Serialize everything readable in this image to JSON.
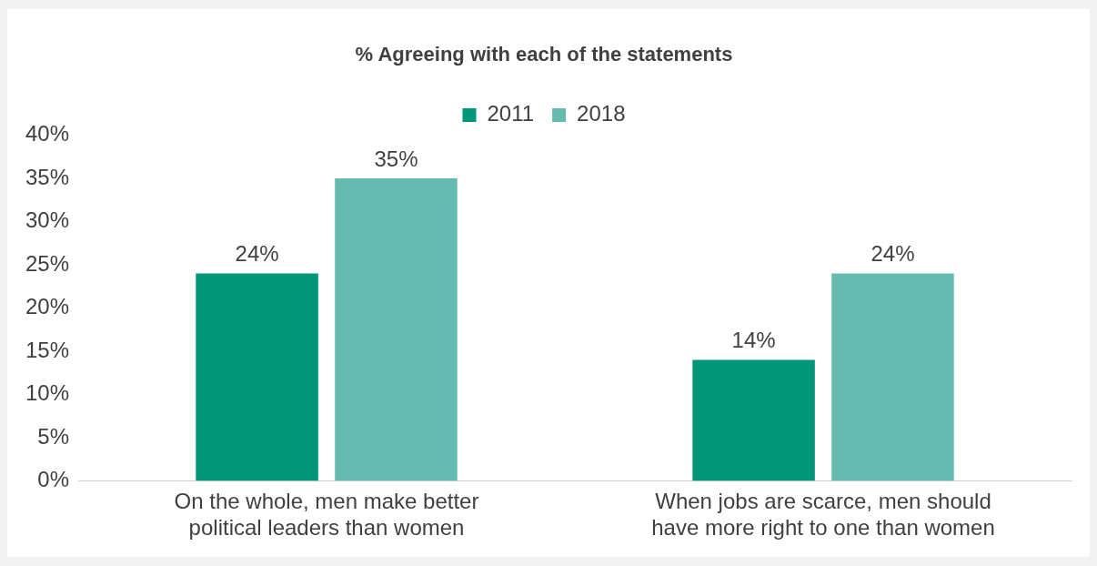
{
  "chart_data": {
    "type": "bar",
    "title": "% Agreeing with each of the statements",
    "categories": [
      "On the whole, men make better political leaders than women",
      "When jobs are scarce, men should have more right to one than women"
    ],
    "series": [
      {
        "name": "2011",
        "color": "#009677",
        "values": [
          24,
          14
        ],
        "value_labels": [
          "24%",
          "14%"
        ]
      },
      {
        "name": "2018",
        "color": "#66bbb0",
        "values": [
          35,
          24
        ],
        "value_labels": [
          "35%",
          "24%"
        ]
      }
    ],
    "ylim": [
      0,
      40
    ],
    "yticks": [
      {
        "value": 0,
        "label": "0%"
      },
      {
        "value": 5,
        "label": "5%"
      },
      {
        "value": 10,
        "label": "10%"
      },
      {
        "value": 15,
        "label": "15%"
      },
      {
        "value": 20,
        "label": "20%"
      },
      {
        "value": 25,
        "label": "25%"
      },
      {
        "value": 30,
        "label": "30%"
      },
      {
        "value": 35,
        "label": "35%"
      },
      {
        "value": 40,
        "label": "40%"
      }
    ],
    "grid": false,
    "legend": "top"
  }
}
